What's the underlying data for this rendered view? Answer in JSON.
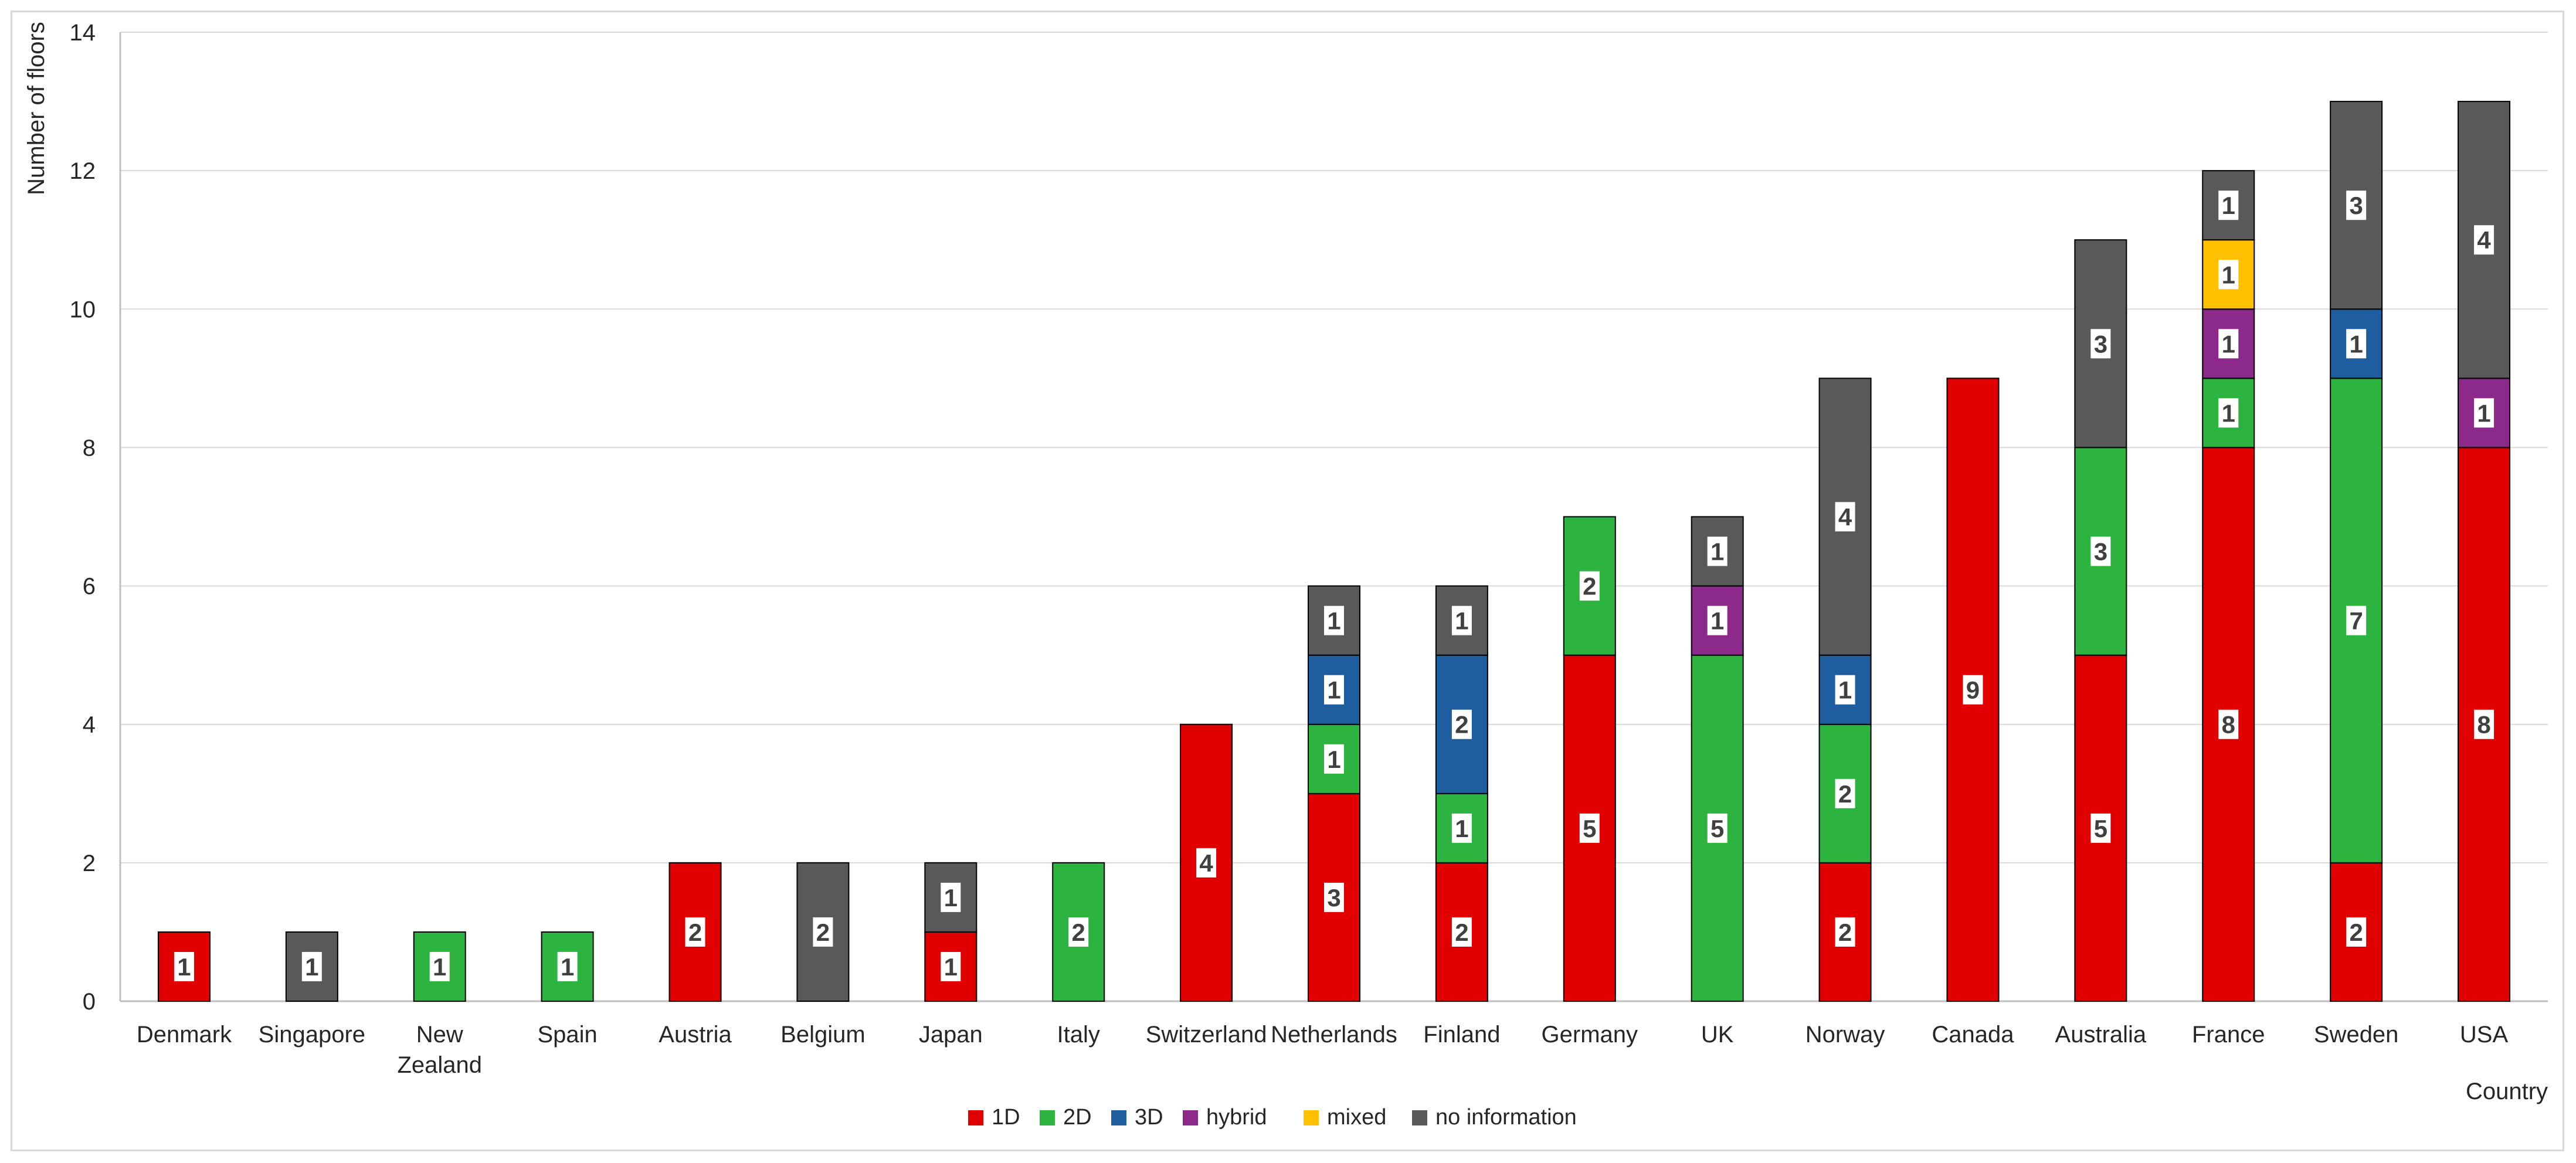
{
  "chart_data": {
    "type": "bar",
    "stacked": true,
    "title": "",
    "xlabel": "Country",
    "ylabel": "Number of floors",
    "ylim": [
      0,
      14
    ],
    "yticks": [
      "0",
      "2",
      "4",
      "6",
      "8",
      "10",
      "12",
      "14"
    ],
    "grid": true,
    "legend_position": "bottom",
    "categories": [
      "Denmark",
      "Singapore",
      "New Zealand",
      "Spain",
      "Austria",
      "Belgium",
      "Japan",
      "Italy",
      "Switzerland",
      "Netherlands",
      "Finland",
      "Germany",
      "UK",
      "Norway",
      "Canada",
      "Australia",
      "France",
      "Sweden",
      "USA"
    ],
    "series": [
      {
        "name": "1D",
        "color": "#e00000",
        "values": [
          1,
          0,
          0,
          0,
          2,
          0,
          1,
          0,
          4,
          3,
          2,
          5,
          0,
          2,
          9,
          5,
          8,
          2,
          8
        ]
      },
      {
        "name": "2D",
        "color": "#2db33f",
        "values": [
          0,
          0,
          1,
          1,
          0,
          0,
          0,
          2,
          0,
          1,
          1,
          2,
          5,
          2,
          0,
          3,
          1,
          7,
          0
        ]
      },
      {
        "name": "3D",
        "color": "#1f5e9e",
        "values": [
          0,
          0,
          0,
          0,
          0,
          0,
          0,
          0,
          0,
          1,
          2,
          0,
          0,
          1,
          0,
          0,
          0,
          1,
          0
        ]
      },
      {
        "name": "hybrid",
        "color": "#8b2a8b",
        "values": [
          0,
          0,
          0,
          0,
          0,
          0,
          0,
          0,
          0,
          0,
          0,
          0,
          1,
          0,
          0,
          0,
          1,
          0,
          1
        ]
      },
      {
        "name": "mixed",
        "color": "#ffc000",
        "values": [
          0,
          0,
          0,
          0,
          0,
          0,
          0,
          0,
          0,
          0,
          0,
          0,
          0,
          0,
          0,
          0,
          1,
          0,
          0
        ]
      },
      {
        "name": "no information",
        "color": "#595959",
        "values": [
          0,
          1,
          0,
          0,
          0,
          2,
          1,
          0,
          0,
          1,
          1,
          0,
          1,
          4,
          0,
          3,
          1,
          3,
          4
        ]
      }
    ]
  }
}
